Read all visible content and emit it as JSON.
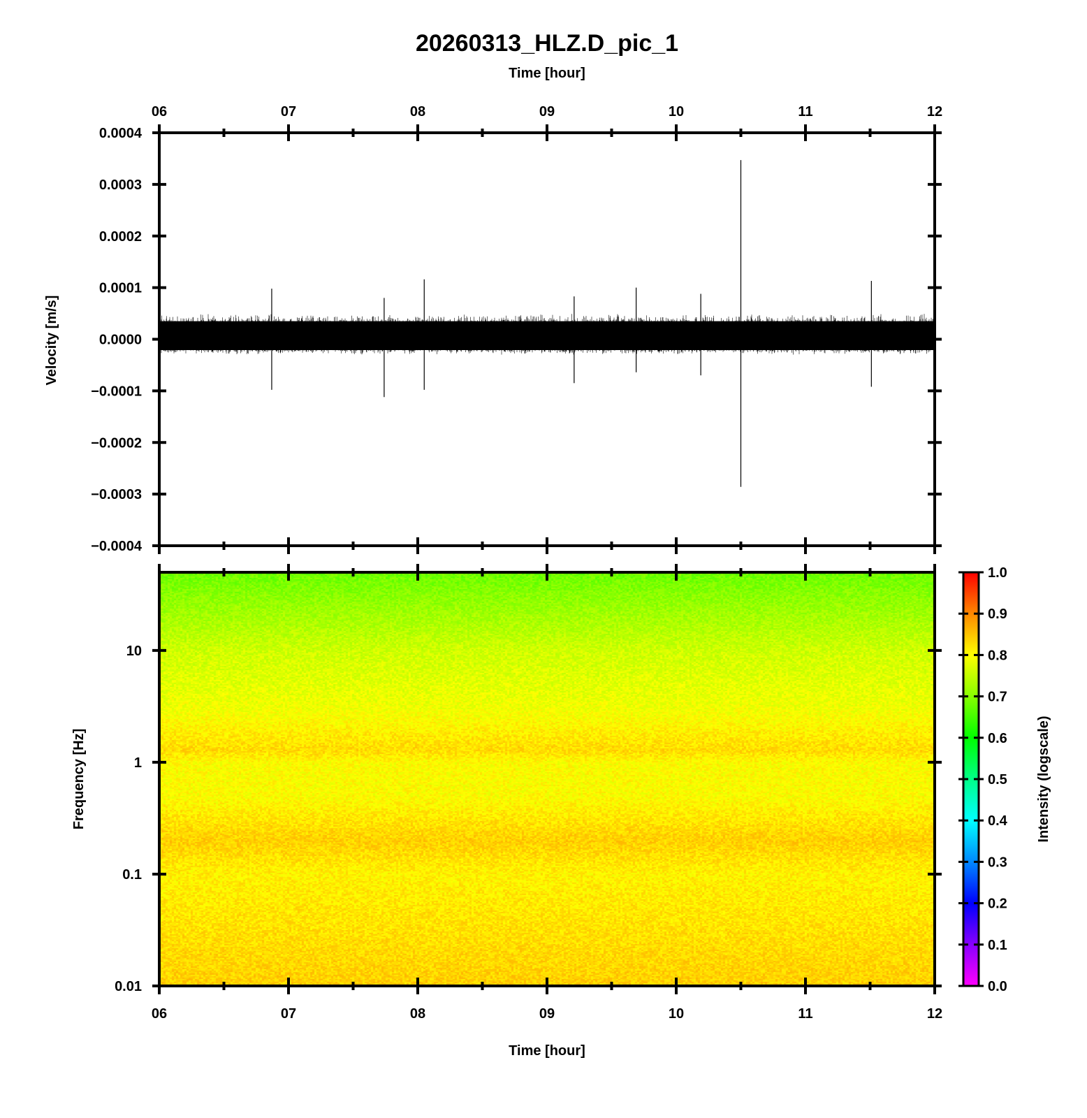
{
  "chart_data": [
    {
      "type": "line",
      "panel": "seismogram",
      "title": "20260313_HLZ.D_pic_1",
      "xlabel": "Time [hour]",
      "ylabel": "Velocity [m/s]",
      "xlim": [
        6,
        12
      ],
      "ylim": [
        -0.0004,
        0.0004
      ],
      "x_ticks": [
        "06",
        "07",
        "08",
        "09",
        "10",
        "11",
        "12"
      ],
      "y_ticks": [
        "0.0004",
        "0.0003",
        "0.0002",
        "0.0001",
        "0.0000",
        "−0.0001",
        "−0.0002",
        "−0.0003",
        "−0.0004"
      ],
      "noise_band": {
        "positive": 5e-05,
        "negative": -3e-05
      },
      "spikes": [
        {
          "t": 6.87,
          "max": 9.8e-05,
          "min": -9.8e-05
        },
        {
          "t": 7.74,
          "max": 8e-05,
          "min": -0.000112
        },
        {
          "t": 8.05,
          "max": 0.000116,
          "min": -9.8e-05
        },
        {
          "t": 9.21,
          "max": 8.3e-05,
          "min": -8.5e-05
        },
        {
          "t": 9.69,
          "max": 0.0001,
          "min": -6.4e-05
        },
        {
          "t": 10.19,
          "max": 8.8e-05,
          "min": -7e-05
        },
        {
          "t": 10.5,
          "max": 0.000347,
          "min": -0.000286
        },
        {
          "t": 11.51,
          "max": 0.000113,
          "min": -9.2e-05
        }
      ],
      "trace_color": "#000000"
    },
    {
      "type": "heatmap",
      "panel": "spectrogram",
      "xlabel": "Time [hour]",
      "ylabel": "Frequency [Hz]",
      "xlim": [
        6,
        12
      ],
      "ylim": [
        0.01,
        50
      ],
      "y_scale": "log",
      "x_ticks": [
        "06",
        "07",
        "08",
        "09",
        "10",
        "11",
        "12"
      ],
      "y_ticks": [
        "10",
        "1",
        "0.1",
        "0.01"
      ],
      "colorbar": {
        "label": "Intensity (logscale)",
        "ticks": [
          "1.0",
          "0.9",
          "0.8",
          "0.7",
          "0.6",
          "0.5",
          "0.4",
          "0.3",
          "0.2",
          "0.1",
          "0.0"
        ],
        "colors": [
          "#ff00ff",
          "#8800ff",
          "#0000ff",
          "#0088ff",
          "#00ffff",
          "#00ff88",
          "#00ff00",
          "#88ff00",
          "#ffff00",
          "#ff8800",
          "#ff0000"
        ]
      },
      "intensity_profile": [
        {
          "freq": 50,
          "value": 0.68
        },
        {
          "freq": 10,
          "value": 0.76
        },
        {
          "freq": 3,
          "value": 0.79
        },
        {
          "freq": 1.3,
          "value": 0.83
        },
        {
          "freq": 1,
          "value": 0.8
        },
        {
          "freq": 0.5,
          "value": 0.8
        },
        {
          "freq": 0.2,
          "value": 0.84
        },
        {
          "freq": 0.1,
          "value": 0.81
        },
        {
          "freq": 0.01,
          "value": 0.84
        }
      ]
    }
  ]
}
